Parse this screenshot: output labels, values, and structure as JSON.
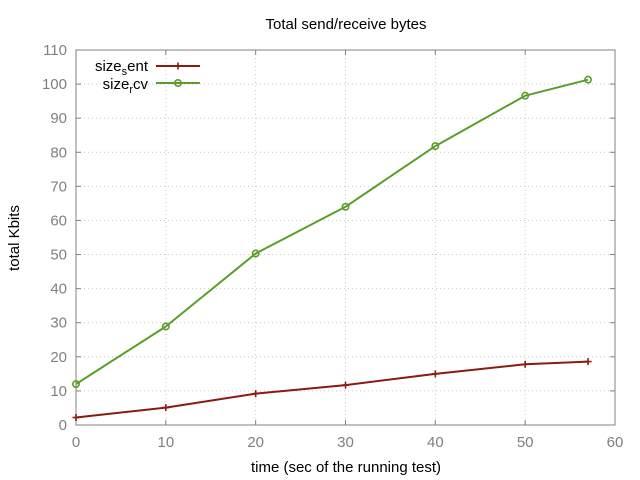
{
  "chart_data": {
    "type": "line",
    "title": "Total send/receive bytes",
    "xlabel": "time (sec of the running test)",
    "ylabel": "total Kbits",
    "xlim": [
      0,
      60
    ],
    "ylim": [
      0,
      110
    ],
    "x_ticks": [
      "0",
      "10",
      "20",
      "30",
      "40",
      "50",
      "60"
    ],
    "y_ticks": [
      "0",
      "10",
      "20",
      "30",
      "40",
      "50",
      "60",
      "70",
      "80",
      "90",
      "100",
      "110"
    ],
    "grid": true,
    "legend_position": "top-left",
    "series": [
      {
        "name_parts": [
          "size",
          "s",
          "ent"
        ],
        "color": "#8b1a10",
        "marker": "plus",
        "points": [
          [
            0,
            2.2
          ],
          [
            10,
            5.1
          ],
          [
            20,
            9.2
          ],
          [
            30,
            11.7
          ],
          [
            40,
            15.0
          ],
          [
            50,
            17.8
          ],
          [
            57,
            18.6
          ]
        ]
      },
      {
        "name_parts": [
          "size",
          "r",
          "cv"
        ],
        "color": "#5a9e2a",
        "marker": "circle",
        "points": [
          [
            0,
            12.0
          ],
          [
            10,
            28.9
          ],
          [
            20,
            50.3
          ],
          [
            30,
            64.0
          ],
          [
            40,
            81.8
          ],
          [
            50,
            96.6
          ],
          [
            57,
            101.3
          ]
        ]
      }
    ]
  }
}
